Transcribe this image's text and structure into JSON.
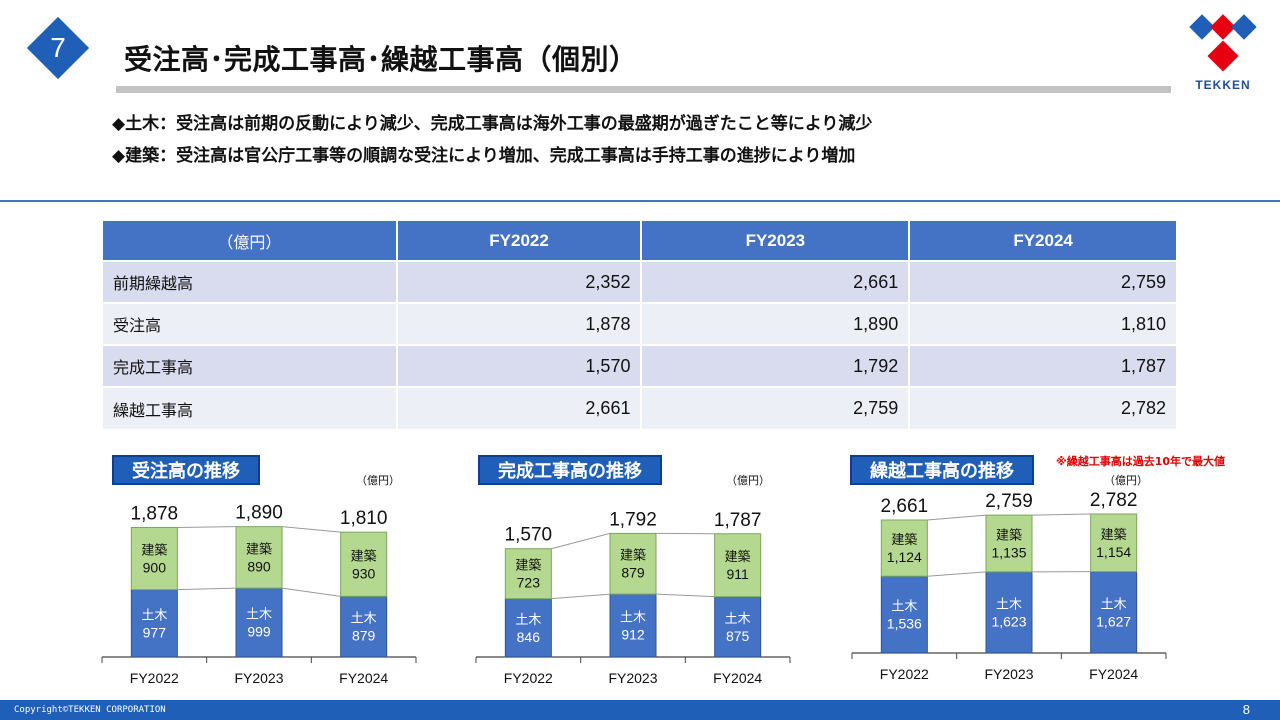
{
  "header": {
    "page_badge": "7",
    "title": "受注高･完成工事高･繰越工事高（個別）",
    "logo_text": "TEKKEN"
  },
  "bullets": [
    "◆土木：受注高は前期の反動により減少、完成工事高は海外工事の最盛期が過ぎたこと等により減少",
    "◆建築：受注高は官公庁工事等の順調な受注により増加、完成工事高は手持工事の進捗により増加"
  ],
  "table": {
    "unit": "（億円）",
    "columns": [
      "FY2022",
      "FY2023",
      "FY2024"
    ],
    "rows": [
      {
        "label": "前期繰越高",
        "values": [
          "2,352",
          "2,661",
          "2,759"
        ]
      },
      {
        "label": "受注高",
        "values": [
          "1,878",
          "1,890",
          "1,810"
        ]
      },
      {
        "label": "完成工事高",
        "values": [
          "1,570",
          "1,792",
          "1,787"
        ]
      },
      {
        "label": "繰越工事高",
        "values": [
          "2,661",
          "2,759",
          "2,782"
        ]
      }
    ]
  },
  "chart_data": [
    {
      "type": "bar",
      "stacked": true,
      "title": "受注高の推移",
      "unit": "（億円）",
      "categories": [
        "FY2022",
        "FY2023",
        "FY2024"
      ],
      "series": [
        {
          "name": "土木",
          "values": [
            977,
            999,
            879
          ],
          "labels": [
            "977",
            "999",
            "879"
          ],
          "color": "#4472c4"
        },
        {
          "name": "建築",
          "values": [
            900,
            890,
            930
          ],
          "labels": [
            "900",
            "890",
            "930"
          ],
          "color": "#b4d88f"
        }
      ],
      "totals": [
        "1,878",
        "1,890",
        "1,810"
      ]
    },
    {
      "type": "bar",
      "stacked": true,
      "title": "完成工事高の推移",
      "unit": "（億円）",
      "categories": [
        "FY2022",
        "FY2023",
        "FY2024"
      ],
      "series": [
        {
          "name": "土木",
          "values": [
            846,
            912,
            875
          ],
          "labels": [
            "846",
            "912",
            "875"
          ],
          "color": "#4472c4"
        },
        {
          "name": "建築",
          "values": [
            723,
            879,
            911
          ],
          "labels": [
            "723",
            "879",
            "911"
          ],
          "color": "#b4d88f"
        }
      ],
      "totals": [
        "1,570",
        "1,792",
        "1,787"
      ]
    },
    {
      "type": "bar",
      "stacked": true,
      "title": "繰越工事高の推移",
      "unit": "（億円）",
      "note": "※繰越工事高は過去10年で最大値",
      "categories": [
        "FY2022",
        "FY2023",
        "FY2024"
      ],
      "series": [
        {
          "name": "土木",
          "values": [
            1536,
            1623,
            1627
          ],
          "labels": [
            "1,536",
            "1,623",
            "1,627"
          ],
          "color": "#4472c4"
        },
        {
          "name": "建築",
          "values": [
            1124,
            1135,
            1154
          ],
          "labels": [
            "1,124",
            "1,135",
            "1,154"
          ],
          "color": "#b4d88f"
        }
      ],
      "totals": [
        "2,661",
        "2,759",
        "2,782"
      ]
    }
  ],
  "footer": {
    "copyright": "Copyright©TEKKEN CORPORATION",
    "page_number": "8"
  }
}
